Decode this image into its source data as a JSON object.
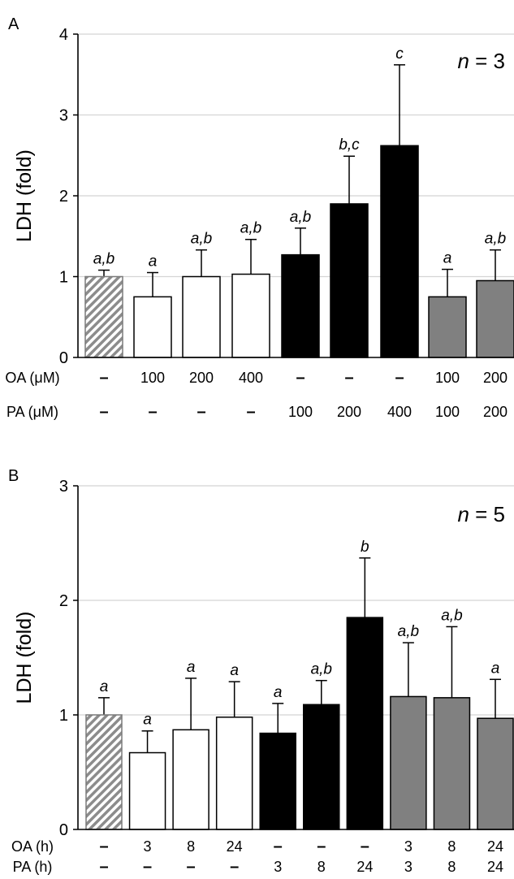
{
  "chart_data": [
    {
      "type": "bar",
      "panel_label": "A",
      "annotation": "n = 3",
      "annotation_parts": {
        "italic": "n",
        "rest": " = 3"
      },
      "ylabel": "LDH (fold)",
      "ylim": [
        0,
        4
      ],
      "yticks": [
        "0",
        "1",
        "2",
        "3",
        "4"
      ],
      "grid": true,
      "treatment_rows": [
        {
          "label": "OA (μM)",
          "values": [
            "–",
            "100",
            "200",
            "400",
            "–",
            "–",
            "–",
            "100",
            "200"
          ]
        },
        {
          "label": "PA (μM)",
          "values": [
            "–",
            "–",
            "–",
            "–",
            "100",
            "200",
            "400",
            "100",
            "200"
          ]
        }
      ],
      "bars": [
        {
          "value": 1.0,
          "error": 0.08,
          "sig": "a,b",
          "style": "hatched"
        },
        {
          "value": 0.75,
          "error": 0.3,
          "sig": "a",
          "style": "white"
        },
        {
          "value": 1.0,
          "error": 0.33,
          "sig": "a,b",
          "style": "white"
        },
        {
          "value": 1.03,
          "error": 0.43,
          "sig": "a,b",
          "style": "white"
        },
        {
          "value": 1.27,
          "error": 0.33,
          "sig": "a,b",
          "style": "black"
        },
        {
          "value": 1.9,
          "error": 0.59,
          "sig": "b,c",
          "style": "black"
        },
        {
          "value": 2.62,
          "error": 1.0,
          "sig": "c",
          "style": "black"
        },
        {
          "value": 0.75,
          "error": 0.34,
          "sig": "a",
          "style": "gray"
        },
        {
          "value": 0.95,
          "error": 0.38,
          "sig": "a,b",
          "style": "gray"
        }
      ]
    },
    {
      "type": "bar",
      "panel_label": "B",
      "annotation": "n = 5",
      "annotation_parts": {
        "italic": "n",
        "rest": " = 5"
      },
      "ylabel": "LDH (fold)",
      "ylim": [
        0,
        3
      ],
      "yticks": [
        "0",
        "1",
        "2",
        "3"
      ],
      "grid": true,
      "treatment_rows": [
        {
          "label": "OA (h)",
          "values": [
            "–",
            "3",
            "8",
            "24",
            "–",
            "–",
            "–",
            "3",
            "8",
            "24"
          ]
        },
        {
          "label": "PA (h)",
          "values": [
            "–",
            "–",
            "–",
            "–",
            "3",
            "8",
            "24",
            "3",
            "8",
            "24"
          ]
        }
      ],
      "bars": [
        {
          "value": 1.0,
          "error": 0.15,
          "sig": "a",
          "style": "hatched"
        },
        {
          "value": 0.67,
          "error": 0.19,
          "sig": "a",
          "style": "white"
        },
        {
          "value": 0.87,
          "error": 0.45,
          "sig": "a",
          "style": "white"
        },
        {
          "value": 0.98,
          "error": 0.31,
          "sig": "a",
          "style": "white"
        },
        {
          "value": 0.84,
          "error": 0.26,
          "sig": "a",
          "style": "black"
        },
        {
          "value": 1.09,
          "error": 0.21,
          "sig": "a,b",
          "style": "black"
        },
        {
          "value": 1.85,
          "error": 0.52,
          "sig": "b",
          "style": "black"
        },
        {
          "value": 1.16,
          "error": 0.47,
          "sig": "a,b",
          "style": "gray"
        },
        {
          "value": 1.15,
          "error": 0.62,
          "sig": "a,b",
          "style": "gray"
        },
        {
          "value": 0.97,
          "error": 0.34,
          "sig": "a",
          "style": "gray"
        }
      ]
    }
  ]
}
